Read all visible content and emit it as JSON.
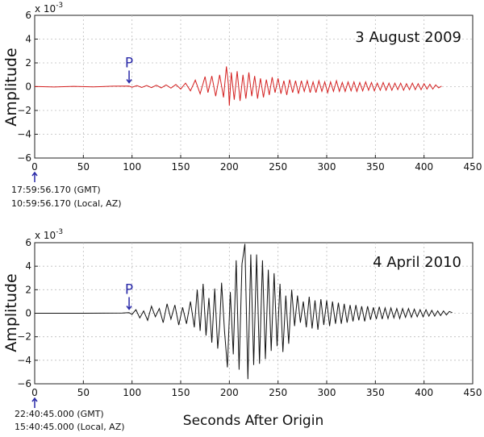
{
  "chart_data": [
    {
      "type": "line",
      "title": "3 August 2009",
      "ylabel": "Amplitude",
      "xlabel": "",
      "exponent_label": "x 10",
      "exponent_power": "-3",
      "xlim": [
        0,
        450
      ],
      "ylim": [
        -6,
        6
      ],
      "xticks": [
        0,
        50,
        100,
        150,
        200,
        250,
        300,
        350,
        400,
        450
      ],
      "yticks": [
        -6,
        -4,
        -2,
        0,
        2,
        4,
        6
      ],
      "color": "#d42020",
      "p_arrival": {
        "label": "P",
        "x": 97
      },
      "origin_times": [
        "17:59:56.170 (GMT)",
        "10:59:56.170 (Local, AZ)"
      ],
      "series": [
        {
          "points": [
            [
              0,
              0.02
            ],
            [
              20,
              -0.03
            ],
            [
              40,
              0.03
            ],
            [
              60,
              -0.02
            ],
            [
              80,
              0.04
            ],
            [
              97,
              0.05
            ],
            [
              100,
              -0.05
            ],
            [
              105,
              0.09
            ],
            [
              110,
              -0.07
            ],
            [
              115,
              0.1
            ],
            [
              120,
              -0.08
            ],
            [
              125,
              0.12
            ],
            [
              130,
              -0.1
            ],
            [
              135,
              0.15
            ],
            [
              140,
              -0.12
            ],
            [
              145,
              0.18
            ],
            [
              150,
              -0.2
            ],
            [
              155,
              0.3
            ],
            [
              160,
              -0.35
            ],
            [
              165,
              0.55
            ],
            [
              170,
              -0.6
            ],
            [
              175,
              0.85
            ],
            [
              178,
              -0.5
            ],
            [
              182,
              0.9
            ],
            [
              186,
              -0.8
            ],
            [
              190,
              1.0
            ],
            [
              194,
              -0.9
            ],
            [
              197,
              1.7
            ],
            [
              199,
              0.2
            ],
            [
              200,
              -1.6
            ],
            [
              202,
              1.2
            ],
            [
              205,
              -1.1
            ],
            [
              208,
              1.3
            ],
            [
              211,
              -1.2
            ],
            [
              214,
              1.0
            ],
            [
              217,
              -1.0
            ],
            [
              220,
              1.2
            ],
            [
              223,
              -0.8
            ],
            [
              226,
              0.9
            ],
            [
              229,
              -1.0
            ],
            [
              232,
              0.7
            ],
            [
              235,
              -0.9
            ],
            [
              238,
              0.6
            ],
            [
              241,
              -0.7
            ],
            [
              244,
              0.8
            ],
            [
              247,
              -0.5
            ],
            [
              250,
              0.7
            ],
            [
              253,
              -0.6
            ],
            [
              256,
              0.5
            ],
            [
              259,
              -0.7
            ],
            [
              262,
              0.6
            ],
            [
              265,
              -0.5
            ],
            [
              268,
              0.5
            ],
            [
              271,
              -0.6
            ],
            [
              274,
              0.5
            ],
            [
              277,
              -0.4
            ],
            [
              280,
              0.5
            ],
            [
              283,
              -0.5
            ],
            [
              286,
              0.4
            ],
            [
              289,
              -0.5
            ],
            [
              292,
              0.5
            ],
            [
              295,
              -0.4
            ],
            [
              298,
              0.4
            ],
            [
              301,
              -0.5
            ],
            [
              304,
              0.4
            ],
            [
              307,
              -0.4
            ],
            [
              310,
              0.5
            ],
            [
              313,
              -0.4
            ],
            [
              316,
              0.35
            ],
            [
              319,
              -0.4
            ],
            [
              322,
              0.4
            ],
            [
              325,
              -0.35
            ],
            [
              328,
              0.4
            ],
            [
              331,
              -0.4
            ],
            [
              334,
              0.35
            ],
            [
              337,
              -0.35
            ],
            [
              340,
              0.4
            ],
            [
              343,
              -0.3
            ],
            [
              346,
              0.35
            ],
            [
              349,
              -0.35
            ],
            [
              352,
              0.3
            ],
            [
              355,
              -0.3
            ],
            [
              358,
              0.35
            ],
            [
              361,
              -0.3
            ],
            [
              364,
              0.3
            ],
            [
              367,
              -0.3
            ],
            [
              370,
              0.3
            ],
            [
              373,
              -0.25
            ],
            [
              376,
              0.3
            ],
            [
              379,
              -0.3
            ],
            [
              382,
              0.25
            ],
            [
              385,
              -0.25
            ],
            [
              388,
              0.3
            ],
            [
              391,
              -0.25
            ],
            [
              394,
              0.25
            ],
            [
              397,
              -0.25
            ],
            [
              400,
              0.25
            ],
            [
              403,
              -0.2
            ],
            [
              406,
              0.2
            ],
            [
              409,
              -0.2
            ],
            [
              412,
              0.15
            ],
            [
              415,
              -0.1
            ],
            [
              418,
              0.05
            ]
          ]
        }
      ]
    },
    {
      "type": "line",
      "title": "4 April 2010",
      "ylabel": "Amplitude",
      "xlabel": "Seconds After Origin",
      "exponent_label": "x 10",
      "exponent_power": "-3",
      "xlim": [
        0,
        450
      ],
      "ylim": [
        -6,
        6
      ],
      "xticks": [
        0,
        50,
        100,
        150,
        200,
        250,
        300,
        350,
        400,
        450
      ],
      "yticks": [
        -6,
        -4,
        -2,
        0,
        2,
        4,
        6
      ],
      "color": "#111111",
      "p_arrival": {
        "label": "P",
        "x": 97
      },
      "origin_times": [
        "22:40:45.000 (GMT)",
        "15:40:45.000 (Local, AZ)"
      ],
      "series": [
        {
          "points": [
            [
              0,
              0.0
            ],
            [
              50,
              0.0
            ],
            [
              90,
              0.02
            ],
            [
              97,
              0.05
            ],
            [
              100,
              -0.1
            ],
            [
              104,
              0.3
            ],
            [
              108,
              -0.4
            ],
            [
              112,
              0.2
            ],
            [
              116,
              -0.6
            ],
            [
              120,
              0.6
            ],
            [
              124,
              -0.3
            ],
            [
              128,
              0.4
            ],
            [
              132,
              -0.8
            ],
            [
              136,
              0.8
            ],
            [
              140,
              -0.5
            ],
            [
              144,
              0.7
            ],
            [
              148,
              -1.0
            ],
            [
              152,
              0.5
            ],
            [
              156,
              -0.9
            ],
            [
              160,
              1.0
            ],
            [
              164,
              -1.2
            ],
            [
              167,
              2.0
            ],
            [
              170,
              -1.5
            ],
            [
              173,
              2.5
            ],
            [
              176,
              -1.9
            ],
            [
              179,
              1.3
            ],
            [
              182,
              -2.5
            ],
            [
              185,
              2.1
            ],
            [
              188,
              -3.0
            ],
            [
              190,
              -1.0
            ],
            [
              192,
              2.6
            ],
            [
              195,
              -1.5
            ],
            [
              198,
              -4.6
            ],
            [
              201,
              1.8
            ],
            [
              204,
              -3.5
            ],
            [
              207,
              4.5
            ],
            [
              210,
              -4.8
            ],
            [
              213,
              4.2
            ],
            [
              216,
              5.9
            ],
            [
              219,
              -5.6
            ],
            [
              222,
              5.0
            ],
            [
              225,
              -4.4
            ],
            [
              228,
              5.0
            ],
            [
              231,
              -4.3
            ],
            [
              234,
              4.5
            ],
            [
              237,
              -3.9
            ],
            [
              240,
              3.7
            ],
            [
              243,
              -3.2
            ],
            [
              246,
              3.4
            ],
            [
              249,
              -2.8
            ],
            [
              252,
              2.5
            ],
            [
              255,
              -3.3
            ],
            [
              258,
              1.5
            ],
            [
              261,
              -2.6
            ],
            [
              264,
              2.0
            ],
            [
              267,
              -1.1
            ],
            [
              270,
              1.5
            ],
            [
              273,
              -0.8
            ],
            [
              276,
              1.0
            ],
            [
              279,
              -1.2
            ],
            [
              282,
              1.4
            ],
            [
              285,
              -1.3
            ],
            [
              288,
              1.1
            ],
            [
              291,
              -1.4
            ],
            [
              294,
              1.2
            ],
            [
              297,
              -1.0
            ],
            [
              300,
              1.1
            ],
            [
              303,
              -1.1
            ],
            [
              306,
              1.0
            ],
            [
              309,
              -0.9
            ],
            [
              312,
              0.9
            ],
            [
              315,
              -0.9
            ],
            [
              318,
              0.8
            ],
            [
              321,
              -0.8
            ],
            [
              324,
              0.7
            ],
            [
              327,
              -0.7
            ],
            [
              330,
              0.7
            ],
            [
              333,
              -0.6
            ],
            [
              336,
              0.6
            ],
            [
              339,
              -0.7
            ],
            [
              342,
              0.6
            ],
            [
              345,
              -0.55
            ],
            [
              348,
              0.5
            ],
            [
              351,
              -0.5
            ],
            [
              354,
              0.55
            ],
            [
              357,
              -0.5
            ],
            [
              360,
              0.45
            ],
            [
              363,
              -0.45
            ],
            [
              366,
              0.45
            ],
            [
              369,
              -0.4
            ],
            [
              372,
              0.4
            ],
            [
              375,
              -0.45
            ],
            [
              378,
              0.4
            ],
            [
              381,
              -0.35
            ],
            [
              384,
              0.4
            ],
            [
              387,
              -0.35
            ],
            [
              390,
              0.35
            ],
            [
              393,
              -0.3
            ],
            [
              396,
              0.3
            ],
            [
              399,
              -0.3
            ],
            [
              402,
              0.3
            ],
            [
              405,
              -0.25
            ],
            [
              408,
              0.25
            ],
            [
              411,
              -0.25
            ],
            [
              414,
              0.2
            ],
            [
              417,
              -0.2
            ],
            [
              420,
              0.2
            ],
            [
              423,
              -0.15
            ],
            [
              426,
              0.15
            ],
            [
              429,
              0.05
            ]
          ]
        }
      ]
    }
  ]
}
